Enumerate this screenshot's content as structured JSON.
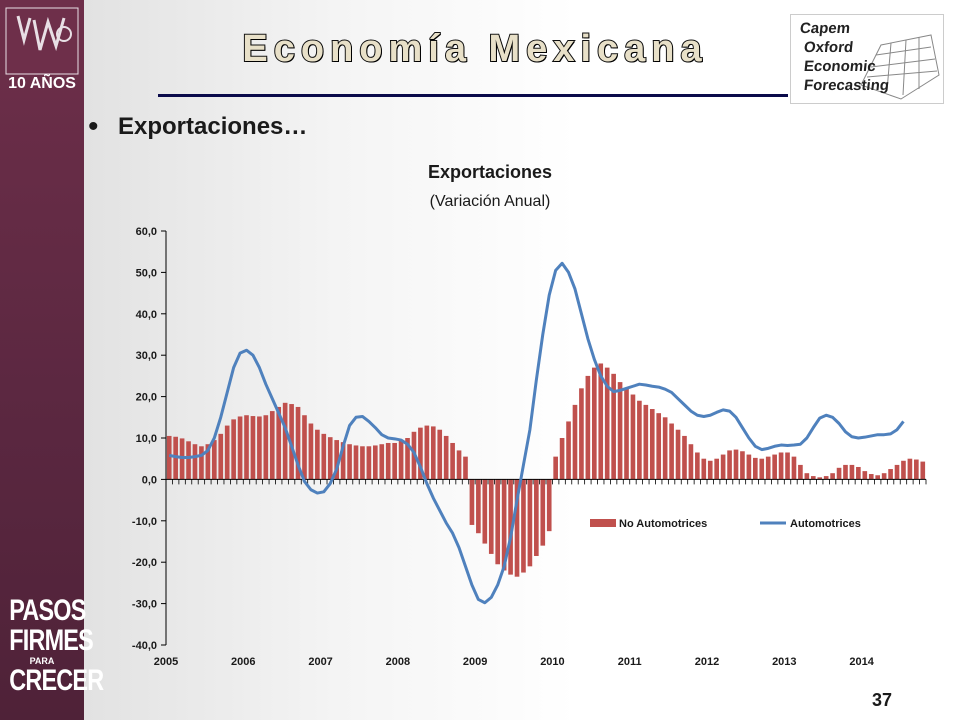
{
  "header": {
    "title": "Economía Mexicana",
    "partner_logo_text": [
      "Capem",
      "Oxford",
      "Economic",
      "Forecasting"
    ]
  },
  "sidebar": {
    "top_logo_text": "10 AÑOS",
    "bottom_logo": [
      "PASOS",
      "FIRMES",
      "PARA",
      "CRECER"
    ]
  },
  "slide": {
    "bullet_text": "Exportaciones…",
    "page_number": "37"
  },
  "colors": {
    "bar": "#c0504d",
    "line": "#4f81bd",
    "sidebar": "#5a2740",
    "rule": "#0a0a4a"
  },
  "chart_data": {
    "type": "bar+line",
    "title": "Exportaciones",
    "subtitle": "(Variación Anual)",
    "ylim": [
      -40,
      60
    ],
    "yticks": [
      "60,0",
      "50,0",
      "40,0",
      "30,0",
      "20,0",
      "10,0",
      "0,0",
      "-10,0",
      "-20,0",
      "-30,0",
      "-40,0"
    ],
    "xticks": [
      "2005",
      "2006",
      "2007",
      "2008",
      "2009",
      "2010",
      "2011",
      "2012",
      "2013",
      "2014"
    ],
    "frequency": "monthly",
    "start": "2005-01",
    "legend": {
      "position": "inside-lower-right",
      "entries": [
        "No Automotrices",
        "Automotrices"
      ]
    },
    "series": [
      {
        "name": "No Automotrices",
        "kind": "bar",
        "values": [
          10.5,
          10.3,
          9.9,
          9.2,
          8.5,
          8.0,
          8.5,
          9.5,
          11.0,
          13.0,
          14.5,
          15.2,
          15.5,
          15.3,
          15.2,
          15.5,
          16.5,
          17.5,
          18.5,
          18.2,
          17.5,
          15.5,
          13.5,
          12.0,
          11.0,
          10.2,
          9.5,
          9.0,
          8.5,
          8.2,
          8.0,
          8.0,
          8.2,
          8.5,
          8.8,
          8.8,
          9.5,
          10.0,
          11.5,
          12.5,
          13.0,
          12.8,
          12.0,
          10.5,
          8.8,
          7.0,
          5.5,
          -11.0,
          -13.0,
          -15.5,
          -18.0,
          -20.5,
          -22.0,
          -23.0,
          -23.5,
          -22.5,
          -21.0,
          -18.5,
          -16.0,
          -12.5,
          5.5,
          10.0,
          14.0,
          18.0,
          22.0,
          25.0,
          27.0,
          28.0,
          27.0,
          25.5,
          23.5,
          22.0,
          20.5,
          19.0,
          18.0,
          17.0,
          16.0,
          15.0,
          13.5,
          12.0,
          10.5,
          8.5,
          6.5,
          5.0,
          4.5,
          5.0,
          6.0,
          7.0,
          7.2,
          6.8,
          6.0,
          5.2,
          5.0,
          5.5,
          6.0,
          6.5,
          6.5,
          5.5,
          3.5,
          1.5,
          0.8,
          0.5,
          0.8,
          1.5,
          2.8,
          3.5,
          3.5,
          3.0,
          2.0,
          1.3,
          1.0,
          1.5,
          2.5,
          3.5,
          4.5,
          5.0,
          4.8,
          4.3
        ]
      },
      {
        "name": "Automotrices",
        "kind": "line",
        "values": [
          5.8,
          5.5,
          5.3,
          5.3,
          5.5,
          5.8,
          7.0,
          10.0,
          15.0,
          21.0,
          27.0,
          30.5,
          31.2,
          30.0,
          27.0,
          23.0,
          19.5,
          16.0,
          12.5,
          8.0,
          3.5,
          -0.5,
          -2.5,
          -3.3,
          -3.0,
          -1.0,
          2.5,
          8.0,
          13.0,
          15.0,
          15.2,
          14.0,
          12.5,
          10.8,
          10.0,
          9.8,
          9.5,
          8.5,
          6.5,
          3.0,
          -1.0,
          -4.5,
          -7.5,
          -10.5,
          -13.0,
          -16.5,
          -21.0,
          -25.5,
          -29.0,
          -29.8,
          -28.5,
          -25.5,
          -21.0,
          -14.0,
          -5.0,
          3.5,
          12.0,
          24.0,
          35.0,
          44.5,
          50.5,
          52.2,
          50.0,
          46.0,
          40.0,
          34.0,
          29.0,
          25.0,
          22.5,
          21.2,
          21.5,
          22.0,
          22.5,
          23.0,
          22.8,
          22.5,
          22.3,
          21.8,
          21.0,
          19.5,
          18.0,
          16.5,
          15.5,
          15.2,
          15.5,
          16.2,
          16.8,
          16.5,
          15.0,
          12.5,
          10.0,
          8.0,
          7.2,
          7.5,
          8.0,
          8.3,
          8.2,
          8.3,
          8.5,
          10.0,
          12.5,
          14.8,
          15.5,
          15.0,
          13.5,
          11.5,
          10.3,
          10.0,
          10.2,
          10.5,
          10.8,
          10.8,
          11.0,
          12.0,
          14.0
        ]
      }
    ]
  }
}
